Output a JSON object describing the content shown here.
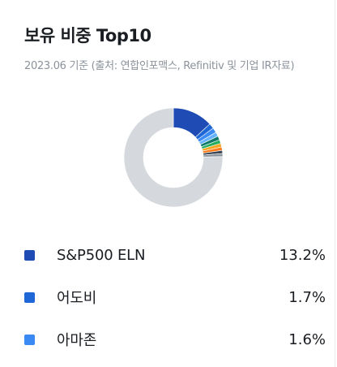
{
  "card": {
    "title": "보유 비중 Top10",
    "source": "2023.06 기준 (출처: 연합인포맥스, Refinitiv 및 기업 IR자료)"
  },
  "chart_data": {
    "type": "pie",
    "style": "donut",
    "slices": [
      {
        "label": "S&P500 ELN",
        "value": 13.2,
        "color": "#1e4bb4"
      },
      {
        "label": "어도비",
        "value": 1.7,
        "color": "#1f66d6"
      },
      {
        "label": "아마존",
        "value": 1.6,
        "color": "#3b8af3"
      },
      {
        "label": "",
        "value": 1.4,
        "color": "#66b2ff"
      },
      {
        "label": "",
        "value": 1.3,
        "color": "#0f7a6b"
      },
      {
        "label": "",
        "value": 1.2,
        "color": "#27ae60"
      },
      {
        "label": "",
        "value": 1.2,
        "color": "#f5a623"
      },
      {
        "label": "",
        "value": 1.1,
        "color": "#ff7a1a"
      },
      {
        "label": "",
        "value": 1.0,
        "color": "#3c4756"
      },
      {
        "label": "",
        "value": 1.0,
        "color": "#8a949f"
      },
      {
        "label": "",
        "value": 75.3,
        "color": "#d5d9dd"
      }
    ]
  },
  "legend": [
    {
      "label": "S&P500 ELN",
      "value": "13.2%",
      "color": "#1e4bb4"
    },
    {
      "label": "어도비",
      "value": "1.7%",
      "color": "#1f66d6"
    },
    {
      "label": "아마존",
      "value": "1.6%",
      "color": "#3b8af3"
    }
  ]
}
